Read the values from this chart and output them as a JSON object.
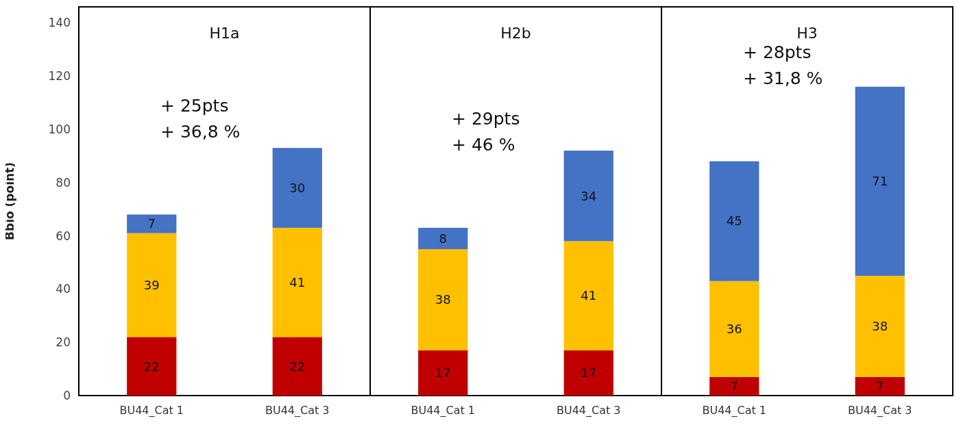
{
  "chart_data": [
    {
      "type": "bar",
      "title": "H1a",
      "ylabel": "Bbio (point)",
      "categories": [
        "BU44_Cat 1",
        "BU44_Cat 3"
      ],
      "stacked": true,
      "data_labels": true,
      "ylim": [
        0,
        146
      ],
      "yticks": [
        0,
        20,
        40,
        60,
        80,
        100,
        120,
        140
      ],
      "annotations": [
        "+ 25pts",
        "+ 36,8 %"
      ],
      "series": [
        {
          "color": "#c00000",
          "values": [
            22,
            22
          ]
        },
        {
          "color": "#ffc000",
          "values": [
            39,
            41
          ]
        },
        {
          "color": "#4472c4",
          "values": [
            7,
            30
          ]
        }
      ]
    },
    {
      "type": "bar",
      "title": "H2b",
      "categories": [
        "BU44_Cat 1",
        "BU44_Cat 3"
      ],
      "stacked": true,
      "data_labels": true,
      "ylim": [
        0,
        146
      ],
      "tick_labels": "x",
      "annotations": [
        "+ 29pts",
        "+ 46 %"
      ],
      "series": [
        {
          "color": "#c00000",
          "values": [
            17,
            17
          ]
        },
        {
          "color": "#ffc000",
          "values": [
            38,
            41
          ]
        },
        {
          "color": "#4472c4",
          "values": [
            8,
            34
          ]
        }
      ]
    },
    {
      "type": "bar",
      "title": "H3",
      "categories": [
        "BU44_Cat 1",
        "BU44_Cat 3"
      ],
      "stacked": true,
      "data_labels": true,
      "ylim": [
        0,
        146
      ],
      "tick_labels": "x",
      "annotations": [
        "+ 28pts",
        "+ 31,8 %"
      ],
      "series": [
        {
          "color": "#c00000",
          "values": [
            7,
            7
          ]
        },
        {
          "color": "#ffc000",
          "values": [
            36,
            38
          ]
        },
        {
          "color": "#4472c4",
          "values": [
            45,
            71
          ]
        }
      ]
    }
  ]
}
